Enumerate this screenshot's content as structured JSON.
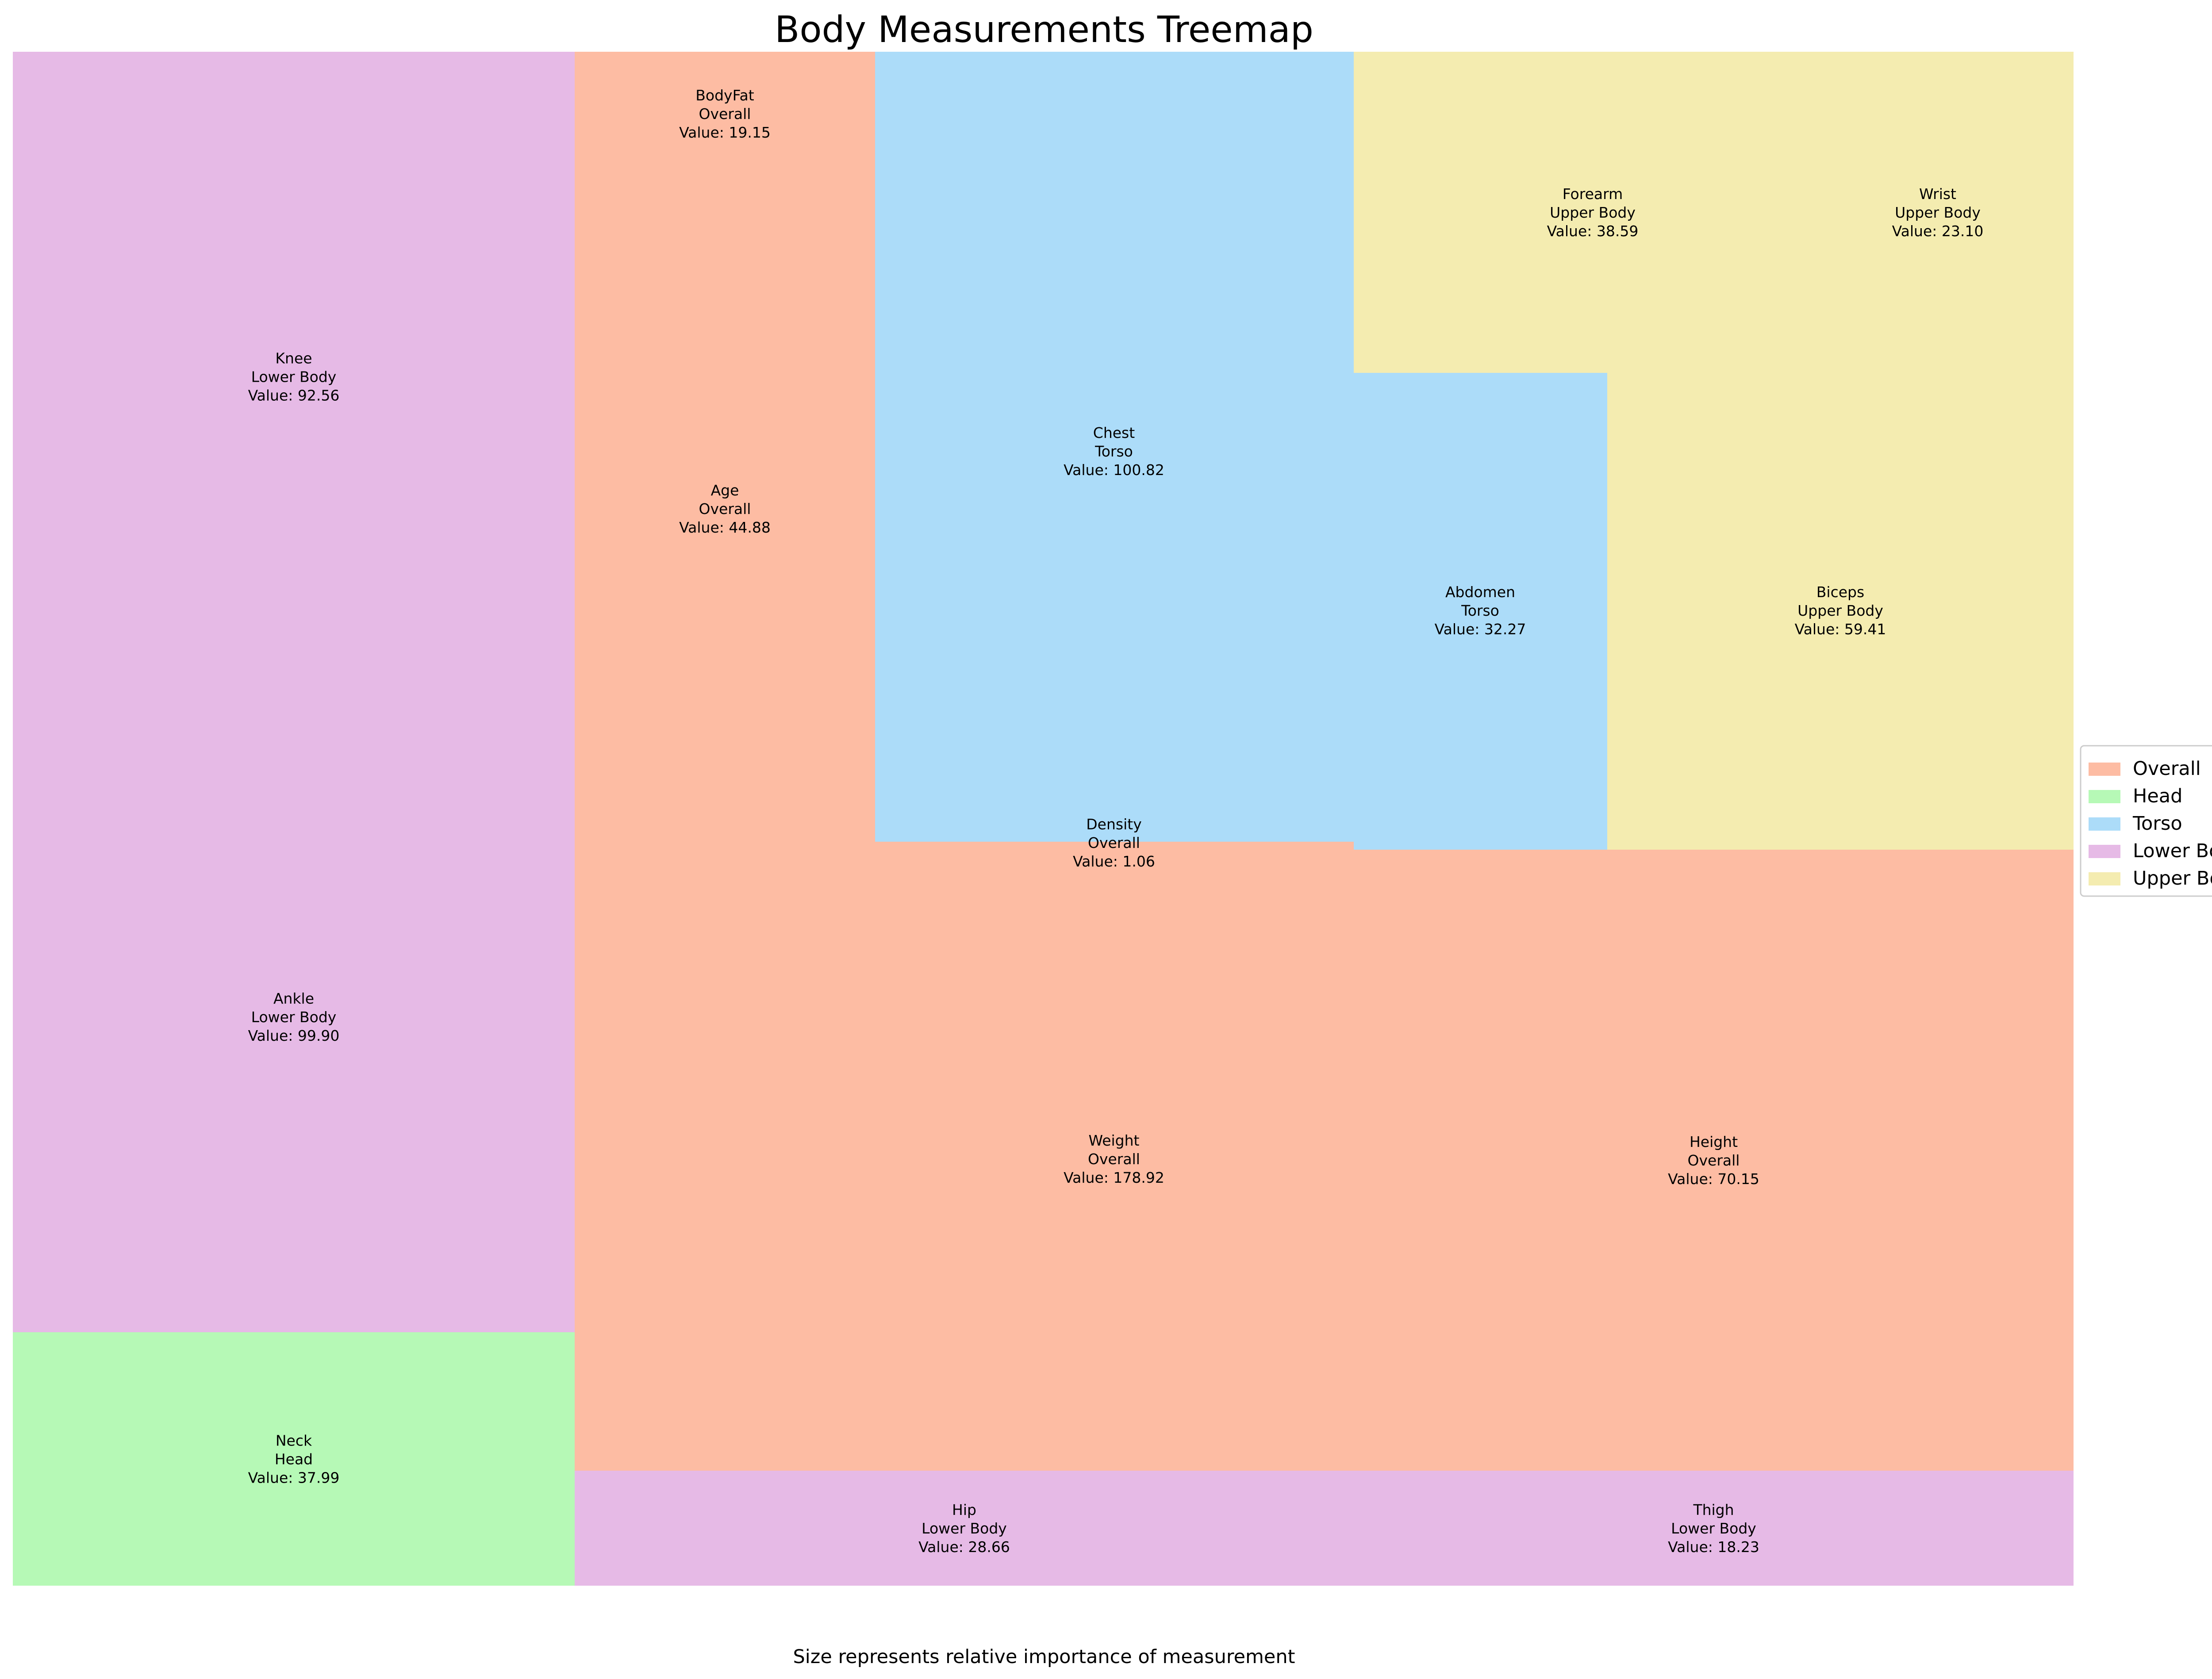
{
  "chart_data": {
    "type": "treemap",
    "title": "Body Measurements Treemap",
    "caption": "Size represents relative importance of measurement",
    "value_prefix": "Value: ",
    "legend": {
      "placement": "right",
      "entries": [
        {
          "name": "Overall",
          "color": "#fdbca3"
        },
        {
          "name": "Head",
          "color": "#b6f9b6"
        },
        {
          "name": "Torso",
          "color": "#acdcf9"
        },
        {
          "name": "Lower Body",
          "color": "#e6bae6"
        },
        {
          "name": "Upper Body",
          "color": "#f4ecb0"
        }
      ]
    },
    "items": [
      {
        "name": "Knee",
        "category": "Lower Body",
        "value": "92.56"
      },
      {
        "name": "Ankle",
        "category": "Lower Body",
        "value": "99.90"
      },
      {
        "name": "Neck",
        "category": "Head",
        "value": "37.99"
      },
      {
        "name": "BodyFat",
        "category": "Overall",
        "value": "19.15"
      },
      {
        "name": "Age",
        "category": "Overall",
        "value": "44.88"
      },
      {
        "name": "Chest",
        "category": "Torso",
        "value": "100.82"
      },
      {
        "name": "Forearm",
        "category": "Upper Body",
        "value": "38.59"
      },
      {
        "name": "Wrist",
        "category": "Upper Body",
        "value": "23.10"
      },
      {
        "name": "Abdomen",
        "category": "Torso",
        "value": "32.27"
      },
      {
        "name": "Biceps",
        "category": "Upper Body",
        "value": "59.41"
      },
      {
        "name": "Density",
        "category": "Overall",
        "value": "1.06"
      },
      {
        "name": "Weight",
        "category": "Overall",
        "value": "178.92"
      },
      {
        "name": "Height",
        "category": "Overall",
        "value": "70.15"
      },
      {
        "name": "Hip",
        "category": "Lower Body",
        "value": "28.66"
      },
      {
        "name": "Thigh",
        "category": "Lower Body",
        "value": "18.23"
      }
    ]
  }
}
